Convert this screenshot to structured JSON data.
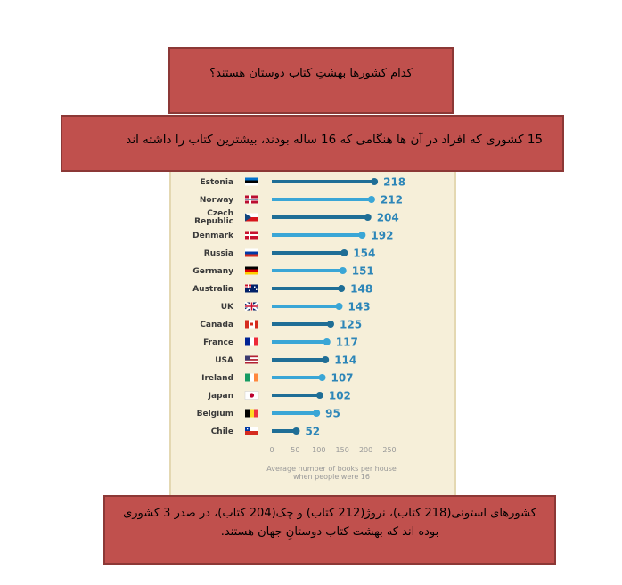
{
  "title_box": {
    "text": "کدام کشورها بهشتِ کتاب دوستان هستند؟"
  },
  "subtitle_box": {
    "text": "15 کشوری که افراد در آن ها هنگامی که 16 ساله بودند، بیشترین کتاب را داشته اند"
  },
  "summary_box": {
    "text": "کشورهای استونی(218 کتاب)، نروژ(212 کتاب) و چک(204 کتاب)، در صدر 3 کشوری بوده اند که بهشت کتاب دوستانِ جهان هستند."
  },
  "colors": {
    "bar_dark": "#1f6e96",
    "bar_light": "#3aa6d6",
    "value_text": "#2d86b8",
    "box_fill": "#c0504d",
    "panel_bg": "#f6efd9"
  },
  "chart_data": {
    "type": "bar",
    "orientation": "horizontal",
    "categories": [
      "Estonia",
      "Norway",
      "Czech Republic",
      "Denmark",
      "Russia",
      "Germany",
      "Australia",
      "UK",
      "Canada",
      "France",
      "USA",
      "Ireland",
      "Japan",
      "Belgium",
      "Chile"
    ],
    "category_lines": [
      [
        "Estonia"
      ],
      [
        "Norway"
      ],
      [
        "Czech",
        "Republic"
      ],
      [
        "Denmark"
      ],
      [
        "Russia"
      ],
      [
        "Germany"
      ],
      [
        "Australia"
      ],
      [
        "UK"
      ],
      [
        "Canada"
      ],
      [
        "France"
      ],
      [
        "USA"
      ],
      [
        "Ireland"
      ],
      [
        "Japan"
      ],
      [
        "Belgium"
      ],
      [
        "Chile"
      ]
    ],
    "values": [
      218,
      212,
      204,
      192,
      154,
      151,
      148,
      143,
      125,
      117,
      114,
      107,
      102,
      95,
      52
    ],
    "flags": [
      "estonia-flag",
      "norway-flag",
      "czech-flag",
      "denmark-flag",
      "russia-flag",
      "germany-flag",
      "australia-flag",
      "uk-flag",
      "canada-flag",
      "france-flag",
      "usa-flag",
      "ireland-flag",
      "japan-flag",
      "belgium-flag",
      "chile-flag"
    ],
    "xticks": [
      0,
      50,
      100,
      150,
      200,
      250
    ],
    "xlim": [
      0,
      250
    ],
    "xlabel_lines": [
      "Average number of books per house",
      "when people were 16"
    ],
    "grid": false,
    "legend": "none"
  }
}
